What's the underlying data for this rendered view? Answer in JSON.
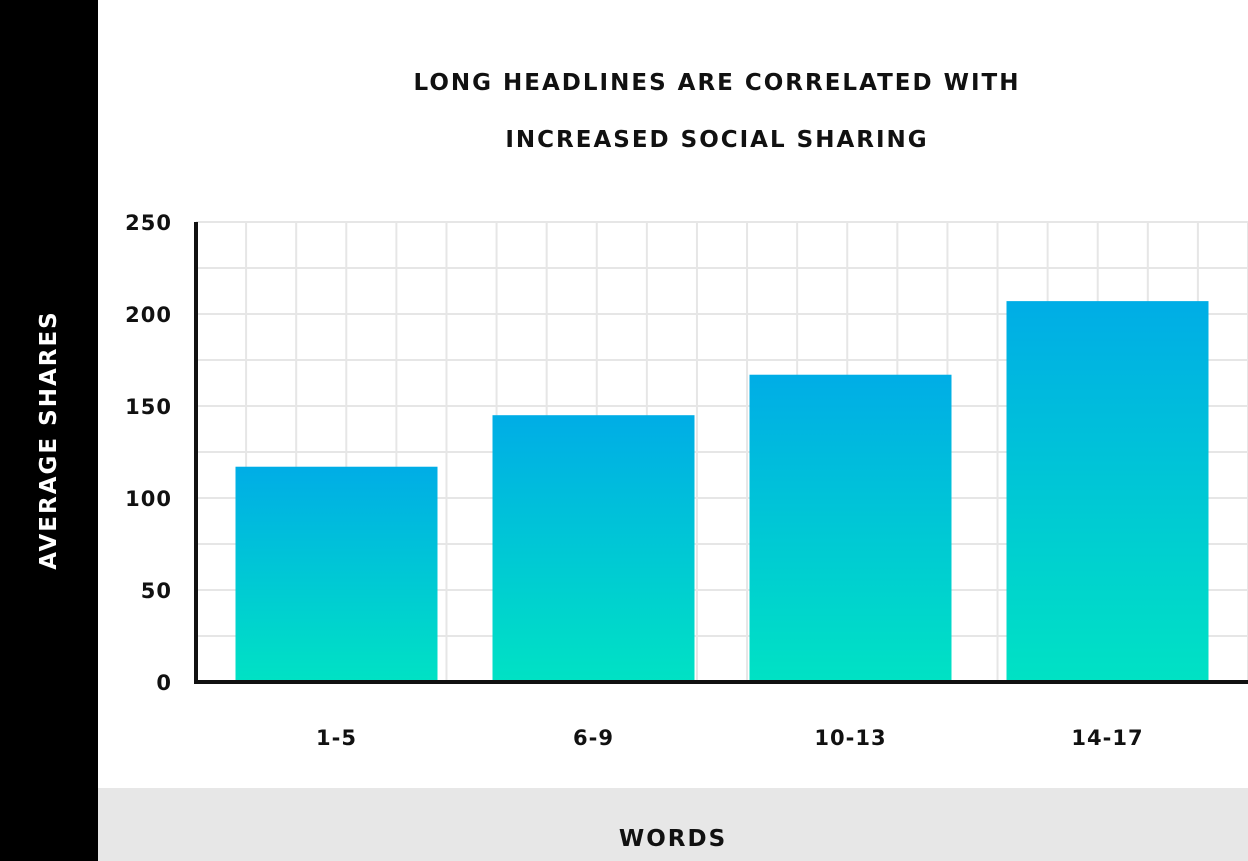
{
  "chart_data": {
    "type": "bar",
    "title_lines": [
      "LONG HEADLINES ARE CORRELATED WITH",
      "INCREASED SOCIAL SHARING"
    ],
    "xlabel": "WORDS",
    "ylabel": "AVERAGE SHARES",
    "categories": [
      "1-5",
      "6-9",
      "10-13",
      "14-17"
    ],
    "values": [
      117,
      145,
      167,
      207
    ],
    "ylim": [
      0,
      250
    ],
    "yticks": [
      0,
      50,
      100,
      150,
      200,
      250
    ],
    "grid": true,
    "colors": {
      "bar_top": "#00ade6",
      "bar_bottom": "#00e2c4",
      "grid": "#e6e6e6",
      "axis": "#111111"
    }
  }
}
